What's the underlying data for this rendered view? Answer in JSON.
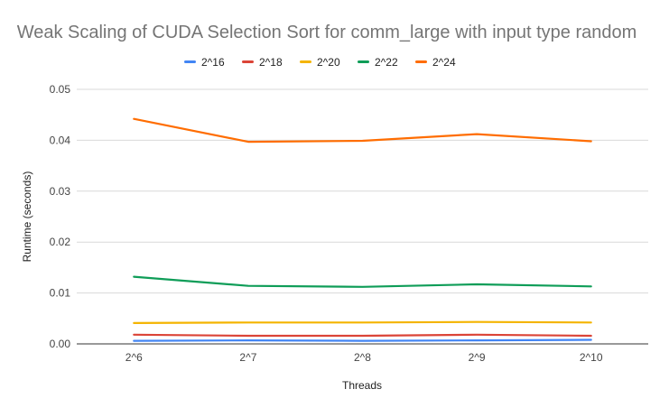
{
  "chart_data": {
    "type": "line",
    "title": "Weak Scaling of CUDA Selection Sort for comm_large with input type random",
    "xlabel": "Threads",
    "ylabel": "Runtime (seconds)",
    "categories": [
      "2^6",
      "2^7",
      "2^8",
      "2^9",
      "2^10"
    ],
    "ylim": [
      0,
      0.05
    ],
    "yticks": [
      "0.00",
      "0.01",
      "0.02",
      "0.03",
      "0.04",
      "0.05"
    ],
    "grid": true,
    "legend_position": "top",
    "series": [
      {
        "name": "2^16",
        "color": "#4285f4",
        "values": [
          0.0006,
          0.0007,
          0.0006,
          0.0007,
          0.0008
        ]
      },
      {
        "name": "2^18",
        "color": "#db4437",
        "values": [
          0.0018,
          0.0016,
          0.0016,
          0.0018,
          0.0016
        ]
      },
      {
        "name": "2^20",
        "color": "#f4b400",
        "values": [
          0.0041,
          0.0042,
          0.0042,
          0.0043,
          0.0042
        ]
      },
      {
        "name": "2^22",
        "color": "#0f9d58",
        "values": [
          0.0132,
          0.0114,
          0.0112,
          0.0117,
          0.0113
        ]
      },
      {
        "name": "2^24",
        "color": "#ff6d01",
        "values": [
          0.0442,
          0.0397,
          0.0399,
          0.0412,
          0.0398
        ]
      }
    ]
  }
}
